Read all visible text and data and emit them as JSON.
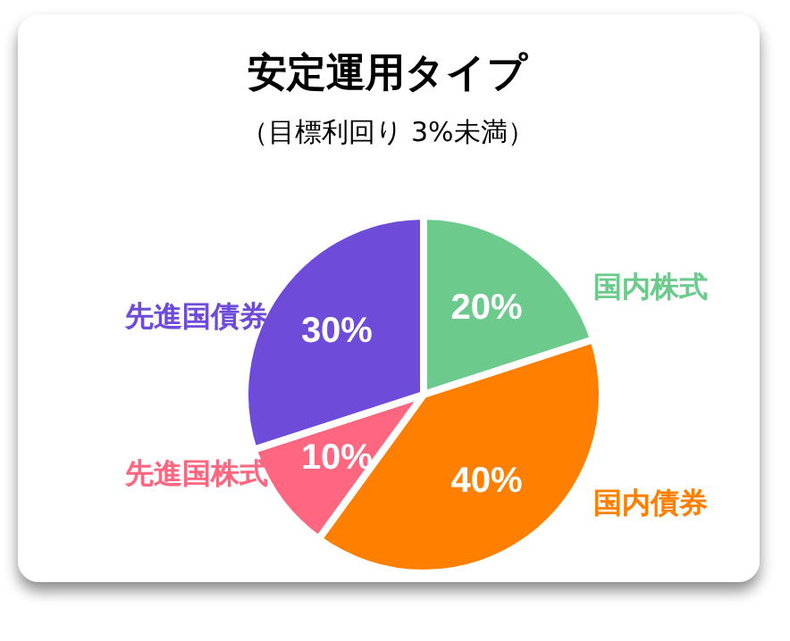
{
  "chart_data": {
    "type": "pie",
    "title": "安定運用タイプ",
    "subtitle": "（目標利回り 3%未満）",
    "categories": [
      "国内株式",
      "国内債券",
      "先進国株式",
      "先進国債券"
    ],
    "values": [
      20,
      40,
      10,
      30
    ],
    "value_labels": [
      "20%",
      "40%",
      "10%",
      "30%"
    ],
    "colors": [
      "#6ccb8c",
      "#ff8000",
      "#ff6680",
      "#6e4bd8"
    ]
  }
}
